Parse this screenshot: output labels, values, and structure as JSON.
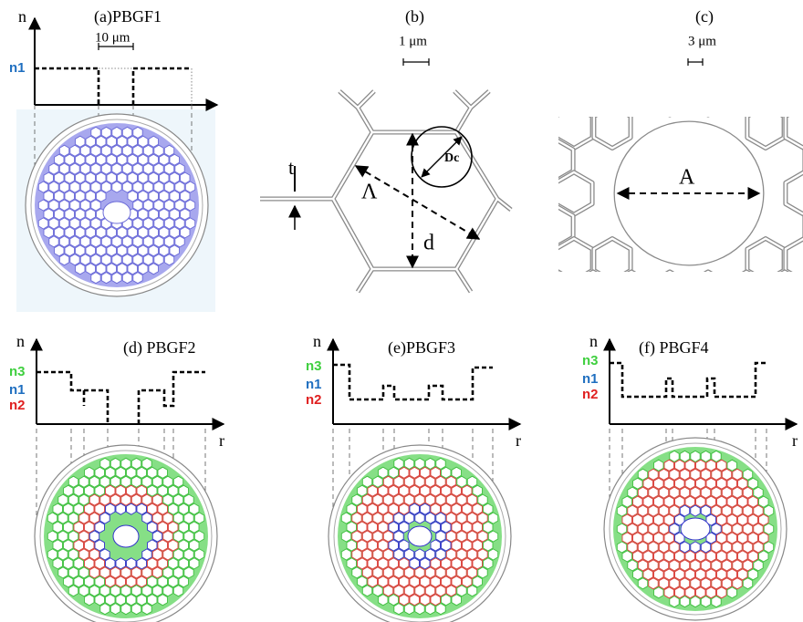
{
  "panels": [
    {
      "title": "(a)PBGF1",
      "n_axis": "n",
      "levels": [
        "n1"
      ],
      "scale_bar": "10 μm"
    },
    {
      "title": "(b)",
      "scale_bar": "1 μm",
      "labels": [
        "t",
        "Λ",
        "d",
        "Dc"
      ]
    },
    {
      "title": "(c)",
      "scale_bar": "3 μm",
      "labels": [
        "A"
      ]
    },
    {
      "title": "(d) PBGF2",
      "n_axis": "n",
      "r_axis": "r",
      "levels": [
        "n3",
        "n1",
        "n2"
      ]
    },
    {
      "title": "(e)PBGF3",
      "n_axis": "n",
      "r_axis": "r",
      "levels": [
        "n3",
        "n1",
        "n2"
      ]
    },
    {
      "title": "(f) PBGF4",
      "n_axis": "n",
      "r_axis": "r",
      "levels": [
        "n3",
        "n1",
        "n2"
      ]
    }
  ]
}
